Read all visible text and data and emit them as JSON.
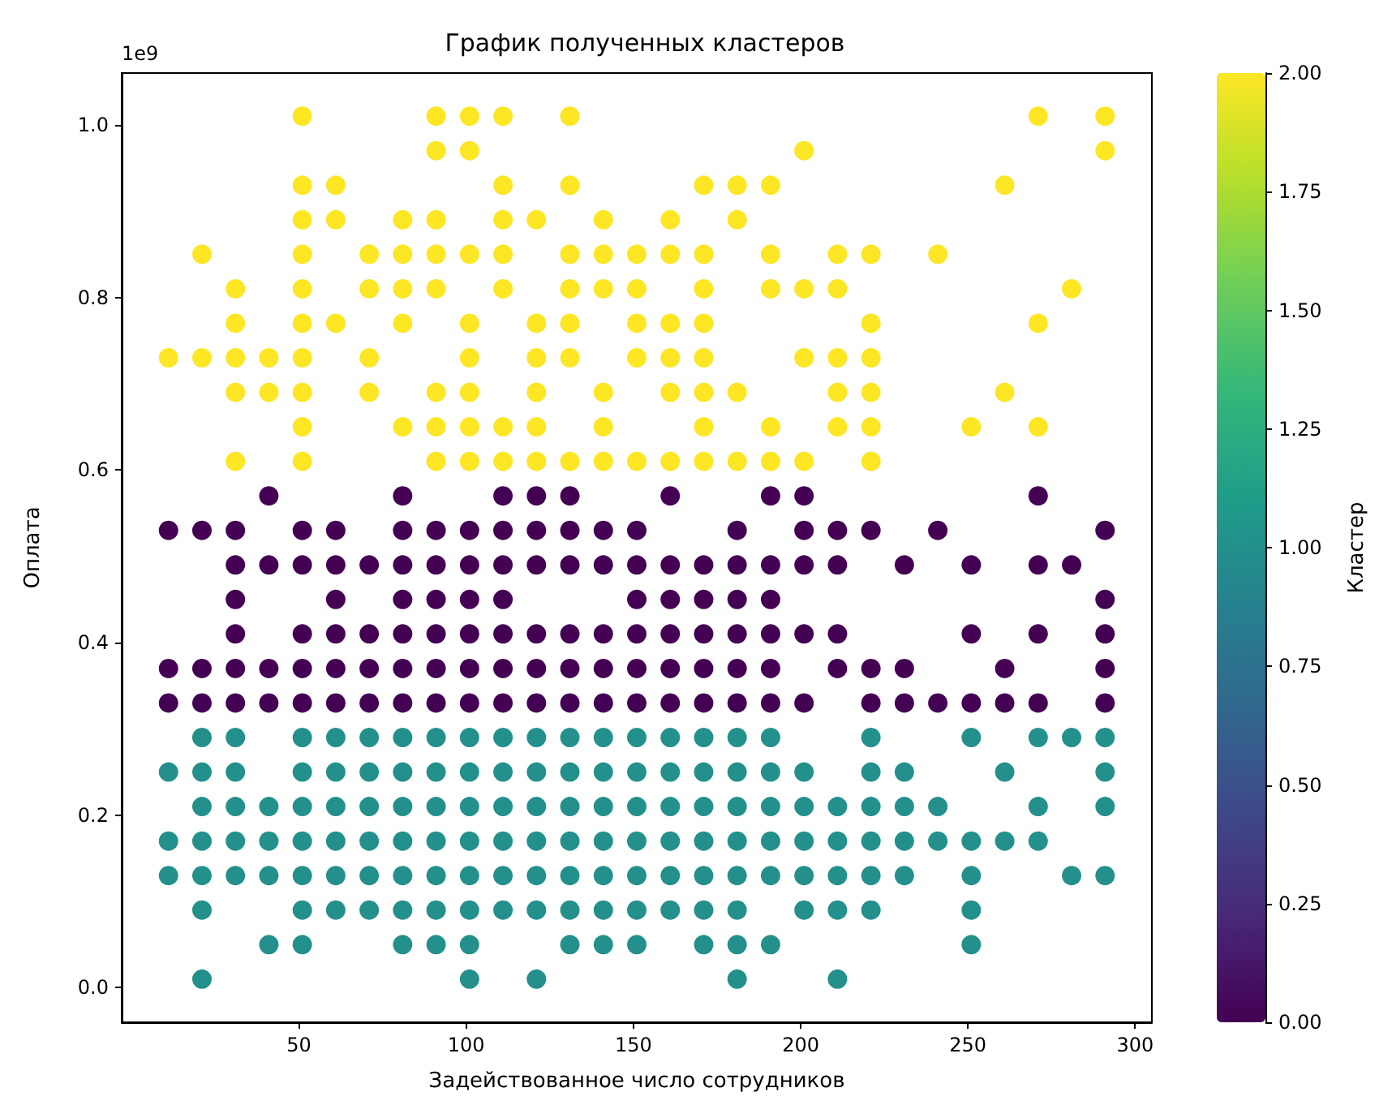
{
  "chart_data": {
    "type": "scatter",
    "title": "График полученных кластеров",
    "xlabel": "Задействованное число сотрудников",
    "ylabel": "Оплата",
    "clabel": "Кластер",
    "annotations": [
      "1e9"
    ],
    "marker": "circle",
    "xlim": [
      -3,
      305
    ],
    "xticks": [
      50,
      100,
      150,
      200,
      250,
      300
    ],
    "ylim": [
      -0.04,
      1.06
    ],
    "yticks": [
      {
        "value": 0,
        "label": "0.0"
      },
      {
        "value": 0.2,
        "label": "0.2"
      },
      {
        "value": 0.4,
        "label": "0.4"
      },
      {
        "value": 0.6,
        "label": "0.6"
      },
      {
        "value": 0.8,
        "label": "0.8"
      },
      {
        "value": 1,
        "label": "1.0"
      }
    ],
    "clim": [
      0,
      2
    ],
    "cticks": [
      {
        "value": 0,
        "label": "0.00"
      },
      {
        "value": 0.25,
        "label": "0.25"
      },
      {
        "value": 0.5,
        "label": "0.50"
      },
      {
        "value": 0.75,
        "label": "0.75"
      },
      {
        "value": 1,
        "label": "1.00"
      },
      {
        "value": 1.25,
        "label": "1.25"
      },
      {
        "value": 1.5,
        "label": "1.50"
      },
      {
        "value": 1.75,
        "label": "1.75"
      },
      {
        "value": 2,
        "label": "2.00"
      }
    ],
    "series": [
      {
        "x": [
          21,
          101,
          121,
          181,
          211
        ],
        "values": [
          0.01,
          0.01,
          0.01,
          0.01,
          0.01
        ],
        "cvalues": [
          1,
          1,
          1,
          1,
          1
        ]
      },
      {
        "x": [
          41,
          51,
          81,
          91,
          101,
          131,
          141,
          151,
          171,
          181,
          191,
          251
        ],
        "values": [
          0.05,
          0.05,
          0.05,
          0.05,
          0.05,
          0.05,
          0.05,
          0.05,
          0.05,
          0.05,
          0.05,
          0.05
        ],
        "cvalues": [
          1,
          1,
          1,
          1,
          1,
          1,
          1,
          1,
          1,
          1,
          1,
          1
        ]
      },
      {
        "x": [
          21,
          51,
          61,
          71,
          81,
          91,
          101,
          111,
          121,
          131,
          141,
          151,
          161,
          171,
          181,
          201,
          211,
          221,
          251
        ],
        "values": [
          0.09,
          0.09,
          0.09,
          0.09,
          0.09,
          0.09,
          0.09,
          0.09,
          0.09,
          0.09,
          0.09,
          0.09,
          0.09,
          0.09,
          0.09,
          0.09,
          0.09,
          0.09,
          0.09
        ],
        "cvalues": [
          1,
          1,
          1,
          1,
          1,
          1,
          1,
          1,
          1,
          1,
          1,
          1,
          1,
          1,
          1,
          1,
          1,
          1,
          1
        ]
      },
      {
        "x": [
          11,
          21,
          31,
          41,
          51,
          61,
          71,
          81,
          91,
          101,
          111,
          121,
          131,
          141,
          151,
          161,
          171,
          181,
          191,
          201,
          211,
          221,
          231,
          251,
          281,
          291
        ],
        "values": [
          0.13,
          0.13,
          0.13,
          0.13,
          0.13,
          0.13,
          0.13,
          0.13,
          0.13,
          0.13,
          0.13,
          0.13,
          0.13,
          0.13,
          0.13,
          0.13,
          0.13,
          0.13,
          0.13,
          0.13,
          0.13,
          0.13,
          0.13,
          0.13,
          0.13,
          0.13
        ],
        "cvalues": [
          1,
          1,
          1,
          1,
          1,
          1,
          1,
          1,
          1,
          1,
          1,
          1,
          1,
          1,
          1,
          1,
          1,
          1,
          1,
          1,
          1,
          1,
          1,
          1,
          1,
          1
        ]
      },
      {
        "x": [
          11,
          21,
          31,
          41,
          51,
          61,
          71,
          81,
          91,
          101,
          111,
          121,
          131,
          141,
          151,
          161,
          171,
          181,
          191,
          201,
          211,
          221,
          231,
          241,
          251,
          261,
          271
        ],
        "values": [
          0.17,
          0.17,
          0.17,
          0.17,
          0.17,
          0.17,
          0.17,
          0.17,
          0.17,
          0.17,
          0.17,
          0.17,
          0.17,
          0.17,
          0.17,
          0.17,
          0.17,
          0.17,
          0.17,
          0.17,
          0.17,
          0.17,
          0.17,
          0.17,
          0.17,
          0.17,
          0.17
        ],
        "cvalues": [
          1,
          1,
          1,
          1,
          1,
          1,
          1,
          1,
          1,
          1,
          1,
          1,
          1,
          1,
          1,
          1,
          1,
          1,
          1,
          1,
          1,
          1,
          1,
          1,
          1,
          1,
          1
        ]
      },
      {
        "x": [
          21,
          31,
          41,
          51,
          61,
          71,
          81,
          91,
          101,
          111,
          121,
          131,
          141,
          151,
          161,
          171,
          181,
          191,
          201,
          211,
          221,
          231,
          241,
          271,
          291
        ],
        "values": [
          0.21,
          0.21,
          0.21,
          0.21,
          0.21,
          0.21,
          0.21,
          0.21,
          0.21,
          0.21,
          0.21,
          0.21,
          0.21,
          0.21,
          0.21,
          0.21,
          0.21,
          0.21,
          0.21,
          0.21,
          0.21,
          0.21,
          0.21,
          0.21,
          0.21
        ],
        "cvalues": [
          1,
          1,
          1,
          1,
          1,
          1,
          1,
          1,
          1,
          1,
          1,
          1,
          1,
          1,
          1,
          1,
          1,
          1,
          1,
          1,
          1,
          1,
          1,
          1,
          1
        ]
      },
      {
        "x": [
          11,
          21,
          31,
          51,
          61,
          71,
          81,
          91,
          101,
          111,
          121,
          131,
          141,
          151,
          161,
          171,
          181,
          191,
          201,
          221,
          231,
          261,
          291
        ],
        "values": [
          0.25,
          0.25,
          0.25,
          0.25,
          0.25,
          0.25,
          0.25,
          0.25,
          0.25,
          0.25,
          0.25,
          0.25,
          0.25,
          0.25,
          0.25,
          0.25,
          0.25,
          0.25,
          0.25,
          0.25,
          0.25,
          0.25,
          0.25
        ],
        "cvalues": [
          1,
          1,
          1,
          1,
          1,
          1,
          1,
          1,
          1,
          1,
          1,
          1,
          1,
          1,
          1,
          1,
          1,
          1,
          1,
          1,
          1,
          1,
          1
        ]
      },
      {
        "x": [
          21,
          31,
          51,
          61,
          71,
          81,
          91,
          101,
          111,
          121,
          131,
          141,
          151,
          161,
          171,
          181,
          191,
          221,
          251,
          271,
          281,
          291
        ],
        "values": [
          0.29,
          0.29,
          0.29,
          0.29,
          0.29,
          0.29,
          0.29,
          0.29,
          0.29,
          0.29,
          0.29,
          0.29,
          0.29,
          0.29,
          0.29,
          0.29,
          0.29,
          0.29,
          0.29,
          0.29,
          0.29,
          0.29
        ],
        "cvalues": [
          1,
          1,
          1,
          1,
          1,
          1,
          1,
          1,
          1,
          1,
          1,
          1,
          1,
          1,
          1,
          1,
          1,
          1,
          1,
          1,
          1,
          1
        ]
      },
      {
        "x": [
          11,
          21,
          31,
          41,
          51,
          61,
          71,
          81,
          91,
          101,
          111,
          121,
          131,
          141,
          151,
          161,
          171,
          181,
          191,
          201,
          221,
          231,
          241,
          251,
          261,
          271,
          291
        ],
        "values": [
          0.33,
          0.33,
          0.33,
          0.33,
          0.33,
          0.33,
          0.33,
          0.33,
          0.33,
          0.33,
          0.33,
          0.33,
          0.33,
          0.33,
          0.33,
          0.33,
          0.33,
          0.33,
          0.33,
          0.33,
          0.33,
          0.33,
          0.33,
          0.33,
          0.33,
          0.33,
          0.33
        ],
        "cvalues": [
          0,
          0,
          0,
          0,
          0,
          0,
          0,
          0,
          0,
          0,
          0,
          0,
          0,
          0,
          0,
          0,
          0,
          0,
          0,
          0,
          0,
          0,
          0,
          0,
          0,
          0,
          0
        ]
      },
      {
        "x": [
          11,
          21,
          31,
          41,
          51,
          61,
          71,
          81,
          91,
          101,
          111,
          121,
          131,
          141,
          151,
          161,
          171,
          181,
          191,
          211,
          221,
          231,
          261,
          291
        ],
        "values": [
          0.37,
          0.37,
          0.37,
          0.37,
          0.37,
          0.37,
          0.37,
          0.37,
          0.37,
          0.37,
          0.37,
          0.37,
          0.37,
          0.37,
          0.37,
          0.37,
          0.37,
          0.37,
          0.37,
          0.37,
          0.37,
          0.37,
          0.37,
          0.37
        ],
        "cvalues": [
          0,
          0,
          0,
          0,
          0,
          0,
          0,
          0,
          0,
          0,
          0,
          0,
          0,
          0,
          0,
          0,
          0,
          0,
          0,
          0,
          0,
          0,
          0,
          0
        ]
      },
      {
        "x": [
          31,
          51,
          61,
          71,
          81,
          91,
          101,
          111,
          121,
          131,
          141,
          151,
          161,
          171,
          181,
          191,
          201,
          211,
          251,
          271,
          291
        ],
        "values": [
          0.41,
          0.41,
          0.41,
          0.41,
          0.41,
          0.41,
          0.41,
          0.41,
          0.41,
          0.41,
          0.41,
          0.41,
          0.41,
          0.41,
          0.41,
          0.41,
          0.41,
          0.41,
          0.41,
          0.41,
          0.41
        ],
        "cvalues": [
          0,
          0,
          0,
          0,
          0,
          0,
          0,
          0,
          0,
          0,
          0,
          0,
          0,
          0,
          0,
          0,
          0,
          0,
          0,
          0,
          0
        ]
      },
      {
        "x": [
          31,
          61,
          81,
          91,
          101,
          111,
          151,
          161,
          171,
          181,
          191,
          291
        ],
        "values": [
          0.45,
          0.45,
          0.45,
          0.45,
          0.45,
          0.45,
          0.45,
          0.45,
          0.45,
          0.45,
          0.45,
          0.45
        ],
        "cvalues": [
          0,
          0,
          0,
          0,
          0,
          0,
          0,
          0,
          0,
          0,
          0,
          0
        ]
      },
      {
        "x": [
          31,
          41,
          51,
          61,
          71,
          81,
          91,
          101,
          111,
          121,
          131,
          141,
          151,
          161,
          171,
          181,
          191,
          201,
          211,
          231,
          251,
          271,
          281
        ],
        "values": [
          0.49,
          0.49,
          0.49,
          0.49,
          0.49,
          0.49,
          0.49,
          0.49,
          0.49,
          0.49,
          0.49,
          0.49,
          0.49,
          0.49,
          0.49,
          0.49,
          0.49,
          0.49,
          0.49,
          0.49,
          0.49,
          0.49,
          0.49
        ],
        "cvalues": [
          0,
          0,
          0,
          0,
          0,
          0,
          0,
          0,
          0,
          0,
          0,
          0,
          0,
          0,
          0,
          0,
          0,
          0,
          0,
          0,
          0,
          0,
          0
        ]
      },
      {
        "x": [
          11,
          21,
          31,
          51,
          61,
          81,
          91,
          101,
          111,
          121,
          131,
          141,
          151,
          181,
          201,
          211,
          221,
          241,
          291
        ],
        "values": [
          0.53,
          0.53,
          0.53,
          0.53,
          0.53,
          0.53,
          0.53,
          0.53,
          0.53,
          0.53,
          0.53,
          0.53,
          0.53,
          0.53,
          0.53,
          0.53,
          0.53,
          0.53,
          0.53
        ],
        "cvalues": [
          0,
          0,
          0,
          0,
          0,
          0,
          0,
          0,
          0,
          0,
          0,
          0,
          0,
          0,
          0,
          0,
          0,
          0,
          0
        ]
      },
      {
        "x": [
          41,
          81,
          111,
          121,
          131,
          161,
          191,
          201,
          271
        ],
        "values": [
          0.57,
          0.57,
          0.57,
          0.57,
          0.57,
          0.57,
          0.57,
          0.57,
          0.57
        ],
        "cvalues": [
          0,
          0,
          0,
          0,
          0,
          0,
          0,
          0,
          0
        ]
      },
      {
        "x": [
          31,
          51,
          91,
          101,
          111,
          121,
          131,
          141,
          151,
          161,
          171,
          181,
          191,
          201,
          221
        ],
        "values": [
          0.61,
          0.61,
          0.61,
          0.61,
          0.61,
          0.61,
          0.61,
          0.61,
          0.61,
          0.61,
          0.61,
          0.61,
          0.61,
          0.61,
          0.61
        ],
        "cvalues": [
          2,
          2,
          2,
          2,
          2,
          2,
          2,
          2,
          2,
          2,
          2,
          2,
          2,
          2,
          2
        ]
      },
      {
        "x": [
          51,
          81,
          91,
          101,
          111,
          121,
          141,
          171,
          191,
          211,
          221,
          251,
          271
        ],
        "values": [
          0.65,
          0.65,
          0.65,
          0.65,
          0.65,
          0.65,
          0.65,
          0.65,
          0.65,
          0.65,
          0.65,
          0.65,
          0.65
        ],
        "cvalues": [
          2,
          2,
          2,
          2,
          2,
          2,
          2,
          2,
          2,
          2,
          2,
          2,
          2
        ]
      },
      {
        "x": [
          31,
          41,
          51,
          71,
          91,
          101,
          121,
          141,
          161,
          171,
          181,
          211,
          221,
          261
        ],
        "values": [
          0.69,
          0.69,
          0.69,
          0.69,
          0.69,
          0.69,
          0.69,
          0.69,
          0.69,
          0.69,
          0.69,
          0.69,
          0.69,
          0.69
        ],
        "cvalues": [
          2,
          2,
          2,
          2,
          2,
          2,
          2,
          2,
          2,
          2,
          2,
          2,
          2,
          2
        ]
      },
      {
        "x": [
          11,
          21,
          31,
          41,
          51,
          71,
          101,
          121,
          131,
          151,
          161,
          171,
          201,
          211,
          221
        ],
        "values": [
          0.73,
          0.73,
          0.73,
          0.73,
          0.73,
          0.73,
          0.73,
          0.73,
          0.73,
          0.73,
          0.73,
          0.73,
          0.73,
          0.73,
          0.73
        ],
        "cvalues": [
          2,
          2,
          2,
          2,
          2,
          2,
          2,
          2,
          2,
          2,
          2,
          2,
          2,
          2,
          2
        ]
      },
      {
        "x": [
          31,
          51,
          61,
          81,
          101,
          121,
          131,
          151,
          161,
          171,
          221,
          271
        ],
        "values": [
          0.77,
          0.77,
          0.77,
          0.77,
          0.77,
          0.77,
          0.77,
          0.77,
          0.77,
          0.77,
          0.77,
          0.77
        ],
        "cvalues": [
          2,
          2,
          2,
          2,
          2,
          2,
          2,
          2,
          2,
          2,
          2,
          2
        ]
      },
      {
        "x": [
          31,
          51,
          71,
          81,
          91,
          111,
          131,
          141,
          151,
          171,
          191,
          201,
          211,
          281
        ],
        "values": [
          0.81,
          0.81,
          0.81,
          0.81,
          0.81,
          0.81,
          0.81,
          0.81,
          0.81,
          0.81,
          0.81,
          0.81,
          0.81,
          0.81
        ],
        "cvalues": [
          2,
          2,
          2,
          2,
          2,
          2,
          2,
          2,
          2,
          2,
          2,
          2,
          2,
          2
        ]
      },
      {
        "x": [
          21,
          51,
          71,
          81,
          91,
          101,
          111,
          131,
          141,
          151,
          161,
          171,
          191,
          211,
          221,
          241
        ],
        "values": [
          0.85,
          0.85,
          0.85,
          0.85,
          0.85,
          0.85,
          0.85,
          0.85,
          0.85,
          0.85,
          0.85,
          0.85,
          0.85,
          0.85,
          0.85,
          0.85
        ],
        "cvalues": [
          2,
          2,
          2,
          2,
          2,
          2,
          2,
          2,
          2,
          2,
          2,
          2,
          2,
          2,
          2,
          2
        ]
      },
      {
        "x": [
          51,
          61,
          81,
          91,
          111,
          121,
          141,
          161,
          181
        ],
        "values": [
          0.89,
          0.89,
          0.89,
          0.89,
          0.89,
          0.89,
          0.89,
          0.89,
          0.89
        ],
        "cvalues": [
          2,
          2,
          2,
          2,
          2,
          2,
          2,
          2,
          2
        ]
      },
      {
        "x": [
          51,
          61,
          111,
          131,
          171,
          181,
          191,
          261
        ],
        "values": [
          0.93,
          0.93,
          0.93,
          0.93,
          0.93,
          0.93,
          0.93,
          0.93
        ],
        "cvalues": [
          2,
          2,
          2,
          2,
          2,
          2,
          2,
          2
        ]
      },
      {
        "x": [
          91,
          101,
          201,
          291
        ],
        "values": [
          0.97,
          0.97,
          0.97,
          0.97
        ],
        "cvalues": [
          2,
          2,
          2,
          2
        ]
      },
      {
        "x": [
          51,
          91,
          101,
          111,
          131,
          271,
          291
        ],
        "values": [
          1.01,
          1.01,
          1.01,
          1.01,
          1.01,
          1.01,
          1.01
        ],
        "cvalues": [
          2,
          2,
          2,
          2,
          2,
          2,
          2
        ]
      }
    ]
  }
}
